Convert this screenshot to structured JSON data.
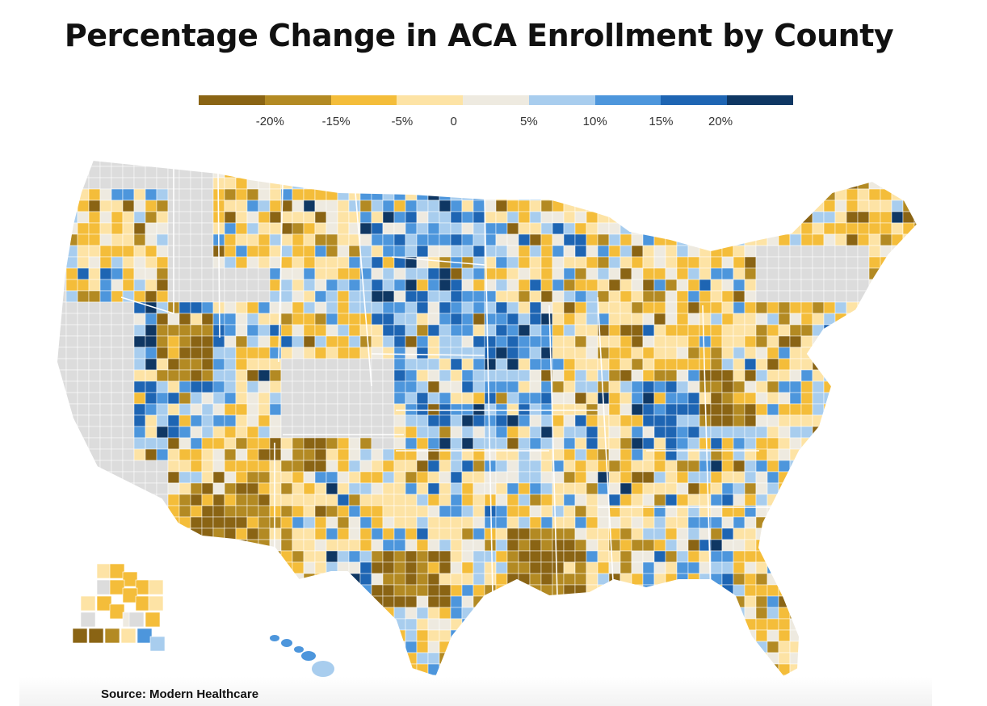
{
  "title": "Percentage Change in ACA Enrollment by County",
  "source": "Source: Modern Healthcare",
  "legend": {
    "colors": [
      "#8a6414",
      "#b38a23",
      "#f4bd3a",
      "#fde3a5",
      "#eeeae0",
      "#a8cdee",
      "#4d96dc",
      "#1e65b3",
      "#0f3763"
    ],
    "ticks": [
      {
        "label": "-20%",
        "pos": 1.08
      },
      {
        "label": "-15%",
        "pos": 2.08
      },
      {
        "label": "-5%",
        "pos": 3.08
      },
      {
        "label": "0",
        "pos": 3.86
      },
      {
        "label": "5%",
        "pos": 5.0
      },
      {
        "label": "10%",
        "pos": 6.0
      },
      {
        "label": "15%",
        "pos": 7.0
      },
      {
        "label": "20%",
        "pos": 7.9
      }
    ]
  },
  "map": {
    "nodata_color": "#dcdcdc",
    "classes": [
      "#8a6414",
      "#b38a23",
      "#f4bd3a",
      "#fde3a5",
      "#eeeae0",
      "#a8cdee",
      "#4d96dc",
      "#1e65b3",
      "#0f3763"
    ],
    "regions": [
      {
        "name": "northwest-no-data",
        "cls": "nd"
      },
      {
        "name": "montana-mixed-orange",
        "cls": "mix-warm"
      },
      {
        "name": "dakotas-blue",
        "cls": "mix-cool"
      },
      {
        "name": "kansas-nebraska-blue",
        "cls": "mix-cool"
      },
      {
        "name": "kentucky-dark-blue",
        "cls": "mix-cool"
      },
      {
        "name": "west-virginia-brown",
        "cls": "mix-hot"
      },
      {
        "name": "louisiana-arkansas-brown",
        "cls": "mix-hot"
      },
      {
        "name": "alaska",
        "cls": "mix-warm"
      },
      {
        "name": "hawaii",
        "cls": "mix-cool"
      }
    ]
  }
}
